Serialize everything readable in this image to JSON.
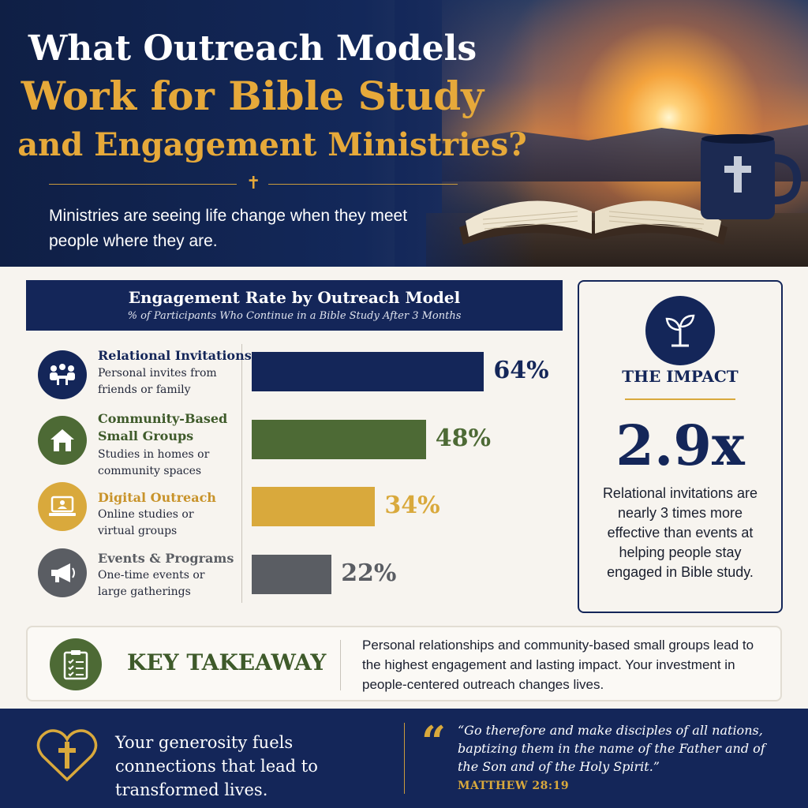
{
  "hero": {
    "title_line1": "What Outreach Models",
    "title_line2": "Work for Bible Study",
    "title_line3": "and Engagement Ministries?",
    "subtitle": "Ministries are seeing life change when they meet people where they are."
  },
  "chart_data": {
    "type": "bar",
    "orientation": "horizontal",
    "title": "Engagement Rate by Outreach Model",
    "subtitle": "% of Participants Who Continue in a Bible Study After 3 Months",
    "categories": [
      "Relational Invitations",
      "Community-Based Small Groups",
      "Digital Outreach",
      "Events & Programs"
    ],
    "descriptions": [
      "Personal invites from friends or family",
      "Studies in homes or community spaces",
      "Online studies or virtual groups",
      "One-time events or large gatherings"
    ],
    "values": [
      64,
      48,
      34,
      22
    ],
    "value_labels": [
      "64%",
      "48%",
      "34%",
      "22%"
    ],
    "colors": [
      "#142659",
      "#4d6a35",
      "#d9a93c",
      "#5a5d63"
    ],
    "icons": [
      "people-meeting-icon",
      "house-icon",
      "laptop-icon",
      "megaphone-icon"
    ],
    "xlim": [
      0,
      100
    ],
    "grid": false,
    "legend": "none"
  },
  "impact": {
    "title": "THE IMPACT",
    "stat": "2.9x",
    "text": "Relational invitations are nearly 3 times more effective than events at helping people stay engaged in Bible study."
  },
  "takeaway": {
    "label": "KEY TAKEAWAY",
    "text": "Personal relationships and community-based small groups lead to the highest engagement and lasting impact. Your investment in people-centered outreach changes lives."
  },
  "footer": {
    "text": "Your generosity fuels connections that lead to transformed lives.",
    "quote": "“Go therefore and make disciples of all nations, baptizing them in the name of the Father and of the Son and of the Holy Spirit.”",
    "reference": "MATTHEW 28:19"
  }
}
